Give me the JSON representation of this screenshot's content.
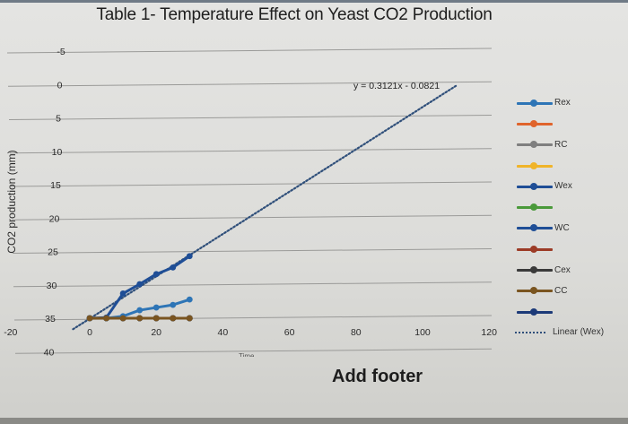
{
  "title": "Table 1- Temperature Effect on Yeast CO2 Production",
  "footer": "Add footer",
  "y_axis_label": "CO2 production (mm)",
  "x_axis_label": "Time",
  "trendline_equation": "y = 0.3121x - 0.0821",
  "y_ticks": [
    "40",
    "35",
    "30",
    "25",
    "20",
    "15",
    "10",
    "5",
    "0",
    "-5"
  ],
  "x_ticks": [
    "-20",
    "0",
    "20",
    "40",
    "60",
    "80",
    "100",
    "120"
  ],
  "legend": [
    {
      "label": "Rex",
      "color": "#2e75b6",
      "style": "line-marker"
    },
    {
      "label": "",
      "color": "#e0642c",
      "style": "line-marker"
    },
    {
      "label": "RC",
      "color": "#7f7f7f",
      "style": "line-marker"
    },
    {
      "label": "",
      "color": "#f0b429",
      "style": "line-marker"
    },
    {
      "label": "Wex",
      "color": "#1f4e96",
      "style": "line-marker"
    },
    {
      "label": "",
      "color": "#4a9a3a",
      "style": "line-marker"
    },
    {
      "label": "WC",
      "color": "#1f4e96",
      "style": "line-marker"
    },
    {
      "label": "",
      "color": "#9c3b26",
      "style": "line-marker"
    },
    {
      "label": "Cex",
      "color": "#3a3a3a",
      "style": "line-marker"
    },
    {
      "label": "CC",
      "color": "#7a5520",
      "style": "line-marker"
    },
    {
      "label": "",
      "color": "#1c3a78",
      "style": "line-marker"
    },
    {
      "label": "Linear (Wex)",
      "color": "#2f4f7a",
      "style": "dotted"
    }
  ],
  "chart_data": {
    "type": "line",
    "title": "Table 1- Temperature Effect on Yeast CO2 Production",
    "xlabel": "Time",
    "ylabel": "CO2 production (mm)",
    "xlim": [
      -20,
      120
    ],
    "ylim": [
      -5,
      40
    ],
    "x_ticks": [
      -20,
      0,
      20,
      40,
      60,
      80,
      100,
      120
    ],
    "y_ticks": [
      -5,
      0,
      5,
      10,
      15,
      20,
      25,
      30,
      35,
      40
    ],
    "grid": "horizontal",
    "legend_position": "right",
    "x": [
      0,
      5,
      10,
      15,
      20,
      25,
      30
    ],
    "series": [
      {
        "name": "Rex",
        "color": "#2e75b6",
        "values": [
          0,
          0,
          0.3,
          1.2,
          1.6,
          2.0,
          2.8
        ]
      },
      {
        "name": "(unlabeled orange)",
        "color": "#e0642c",
        "values": [
          0,
          0,
          0,
          0,
          0,
          0,
          0
        ]
      },
      {
        "name": "RC",
        "color": "#7f7f7f",
        "values": [
          0,
          0,
          0,
          0,
          0,
          0,
          0
        ]
      },
      {
        "name": "(unlabeled yellow)",
        "color": "#f0b429",
        "values": [
          0,
          0,
          0,
          0,
          0,
          0,
          0
        ]
      },
      {
        "name": "Wex",
        "color": "#1f4e96",
        "values": [
          0,
          0.1,
          3.7,
          5.1,
          6.6,
          7.6,
          9.3
        ]
      },
      {
        "name": "(unlabeled green)",
        "color": "#4a9a3a",
        "values": [
          0,
          0,
          0,
          0,
          0,
          0,
          0
        ]
      },
      {
        "name": "WC",
        "color": "#1f4e96",
        "values": [
          0,
          0,
          0,
          0,
          0,
          0,
          0
        ]
      },
      {
        "name": "(unlabeled red)",
        "color": "#9c3b26",
        "values": [
          0,
          0,
          0,
          0,
          0,
          0,
          0
        ]
      },
      {
        "name": "Cex",
        "color": "#3a3a3a",
        "values": [
          0,
          0,
          0,
          0,
          0,
          0,
          0
        ]
      },
      {
        "name": "CC",
        "color": "#7a5520",
        "values": [
          0,
          0,
          0,
          0,
          0,
          0,
          0
        ]
      },
      {
        "name": "(unlabeled navy)",
        "color": "#1c3a78",
        "values": [
          0,
          0,
          0,
          0,
          0,
          0,
          0
        ]
      }
    ],
    "trendline": {
      "name": "Linear (Wex)",
      "equation": "y = 0.3121x - 0.0821",
      "slope": 0.3121,
      "intercept": -0.0821,
      "x_range": [
        -5,
        110
      ],
      "style": "dotted"
    }
  }
}
